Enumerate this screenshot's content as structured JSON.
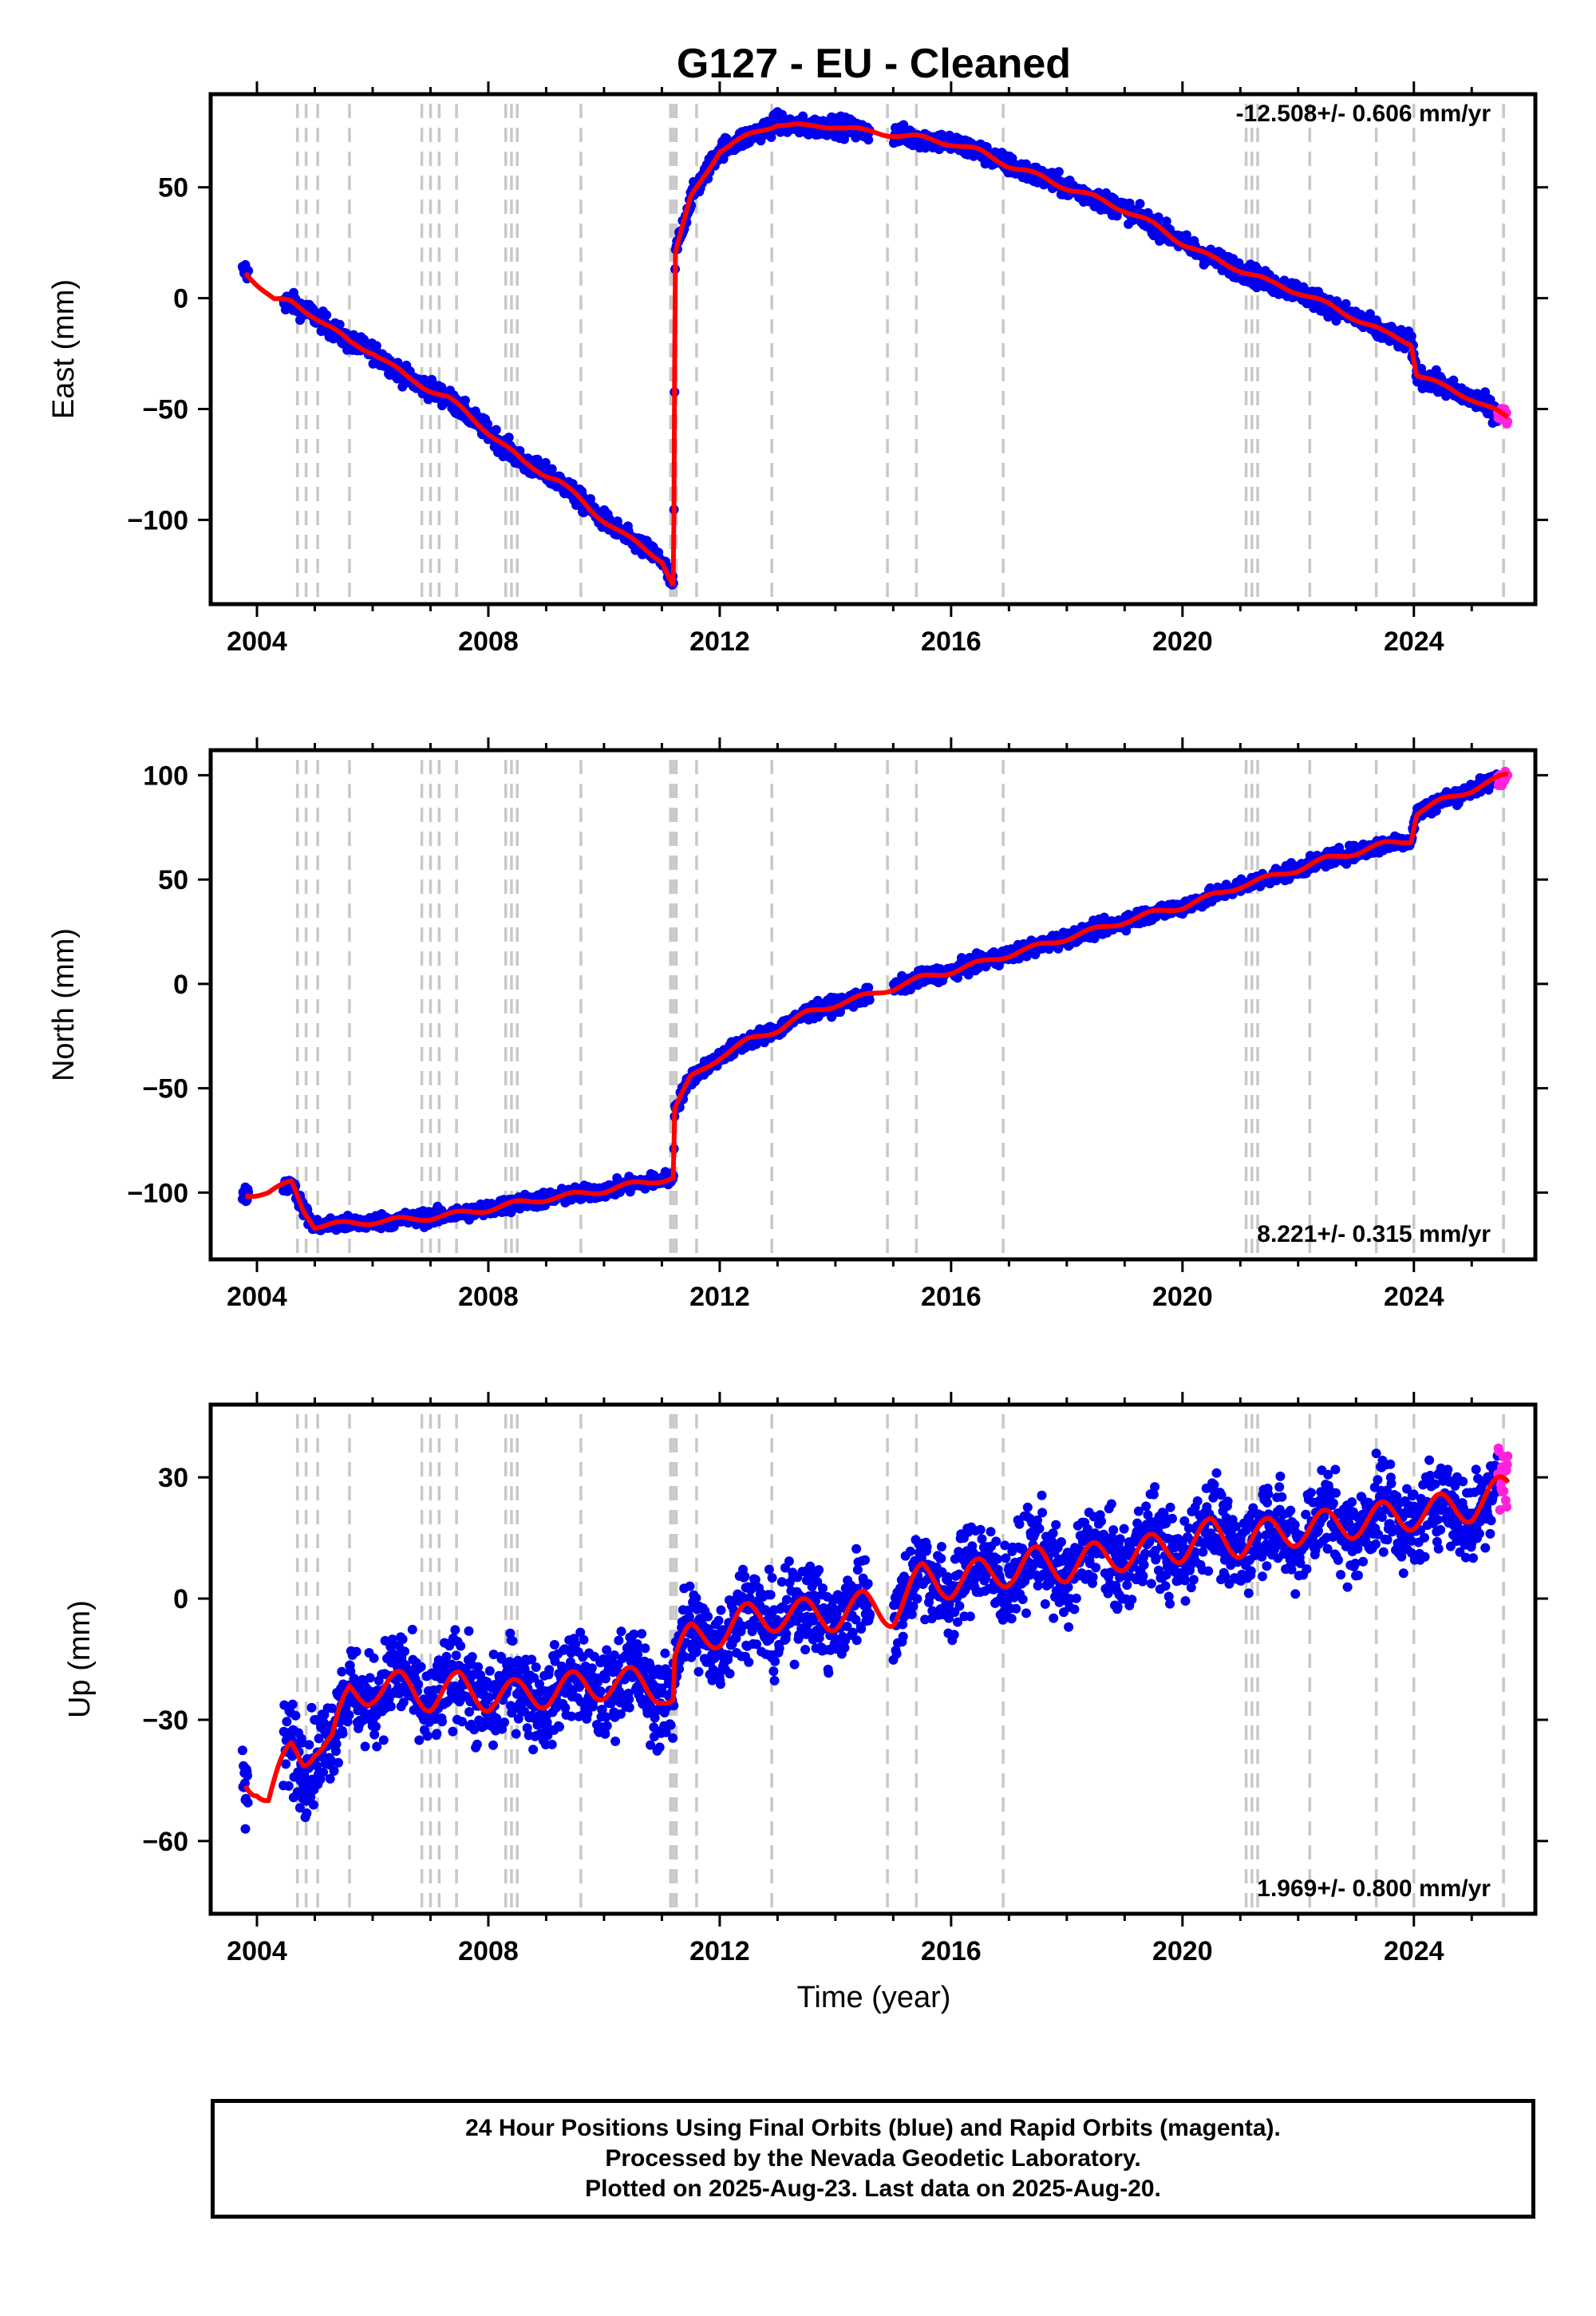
{
  "figure": {
    "title": "G127  - EU - Cleaned",
    "xlabel": "Time (year)",
    "colors": {
      "final": "#0000ee",
      "rapid": "#ff22dd",
      "model": "#ff0000",
      "events": "#c8c8c8"
    },
    "notes": [
      "24 Hour Positions Using Final Orbits (blue) and Rapid Orbits (magenta).",
      "Processed by the Nevada Geodetic Laboratory.",
      "Plotted on 2025-Aug-23. Last data on 2025-Aug-20."
    ]
  },
  "chart_data": [
    {
      "type": "scatter",
      "ylabel": "East (mm)",
      "rate": "-12.508+/- 0.606 mm/yr",
      "xlim": [
        2003.2,
        2026.1
      ],
      "ylim": [
        -138,
        92
      ],
      "xticks": [
        2004,
        2008,
        2012,
        2016,
        2020,
        2024
      ],
      "yticks": [
        -100,
        -50,
        0,
        50
      ],
      "series": [
        {
          "values": [
            [
              2003.8,
              12
            ],
            [
              2004.3,
              -1
            ],
            [
              2004.6,
              -2
            ],
            [
              2005.0,
              -8
            ],
            [
              2005.6,
              -20
            ],
            [
              2006.0,
              -24
            ],
            [
              2006.6,
              -36
            ],
            [
              2007.3,
              -45
            ],
            [
              2007.9,
              -58
            ],
            [
              2008.6,
              -74
            ],
            [
              2009.2,
              -82
            ],
            [
              2009.8,
              -96
            ],
            [
              2010.4,
              -108
            ],
            [
              2011.0,
              -118
            ],
            [
              2011.2,
              -130
            ],
            [
              2011.21,
              -95
            ],
            [
              2011.23,
              20
            ],
            [
              2011.5,
              45
            ],
            [
              2012.0,
              67
            ],
            [
              2012.5,
              73
            ],
            [
              2013.0,
              79
            ],
            [
              2013.5,
              77
            ],
            [
              2014.0,
              78
            ],
            [
              2014.5,
              75
            ],
            [
              2015.0,
              74
            ],
            [
              2015.5,
              72
            ],
            [
              2016.0,
              70
            ],
            [
              2016.5,
              66
            ],
            [
              2017.0,
              60
            ],
            [
              2017.5,
              55
            ],
            [
              2018.0,
              50
            ],
            [
              2018.5,
              45
            ],
            [
              2019.0,
              40
            ],
            [
              2019.5,
              33
            ],
            [
              2020.0,
              25
            ],
            [
              2020.5,
              18
            ],
            [
              2021.0,
              13
            ],
            [
              2021.5,
              7
            ],
            [
              2022.0,
              3
            ],
            [
              2022.5,
              -3
            ],
            [
              2023.0,
              -9
            ],
            [
              2023.5,
              -16
            ],
            [
              2023.95,
              -20
            ],
            [
              2024.05,
              -34
            ],
            [
              2024.5,
              -40
            ],
            [
              2025.0,
              -45
            ],
            [
              2025.6,
              -54
            ]
          ]
        }
      ]
    },
    {
      "type": "scatter",
      "ylabel": "North (mm)",
      "rate": "8.221+/- 0.315 mm/yr",
      "xlim": [
        2003.2,
        2026.1
      ],
      "ylim": [
        -132,
        112
      ],
      "xticks": [
        2004,
        2008,
        2012,
        2016,
        2020,
        2024
      ],
      "yticks": [
        -100,
        -50,
        0,
        50,
        100
      ],
      "series": [
        {
          "values": [
            [
              2003.8,
              -101
            ],
            [
              2004.2,
              -100
            ],
            [
              2004.6,
              -95
            ],
            [
              2004.8,
              -108
            ],
            [
              2005.0,
              -116
            ],
            [
              2005.5,
              -115
            ],
            [
              2006.0,
              -114
            ],
            [
              2006.5,
              -113
            ],
            [
              2007.0,
              -112
            ],
            [
              2007.5,
              -110
            ],
            [
              2008.0,
              -108
            ],
            [
              2008.5,
              -105
            ],
            [
              2009.0,
              -103
            ],
            [
              2009.5,
              -101
            ],
            [
              2010.0,
              -99
            ],
            [
              2010.5,
              -96
            ],
            [
              2011.2,
              -93
            ],
            [
              2011.22,
              -60
            ],
            [
              2011.5,
              -45
            ],
            [
              2012.0,
              -35
            ],
            [
              2012.5,
              -27
            ],
            [
              2013.0,
              -22
            ],
            [
              2013.5,
              -14
            ],
            [
              2014.0,
              -10
            ],
            [
              2014.5,
              -6
            ],
            [
              2015.0,
              -2
            ],
            [
              2015.5,
              3
            ],
            [
              2016.0,
              6
            ],
            [
              2016.5,
              10
            ],
            [
              2017.0,
              14
            ],
            [
              2017.5,
              18
            ],
            [
              2018.0,
              22
            ],
            [
              2018.5,
              26
            ],
            [
              2019.0,
              30
            ],
            [
              2019.5,
              34
            ],
            [
              2020.0,
              37
            ],
            [
              2020.5,
              42
            ],
            [
              2021.0,
              47
            ],
            [
              2021.5,
              51
            ],
            [
              2022.0,
              55
            ],
            [
              2022.5,
              60
            ],
            [
              2023.0,
              63
            ],
            [
              2023.5,
              67
            ],
            [
              2023.95,
              69
            ],
            [
              2024.05,
              82
            ],
            [
              2024.5,
              88
            ],
            [
              2025.0,
              93
            ],
            [
              2025.6,
              100
            ]
          ]
        }
      ]
    },
    {
      "type": "scatter",
      "ylabel": "Up (mm)",
      "rate": "1.969+/- 0.800 mm/yr",
      "xlim": [
        2003.2,
        2026.1
      ],
      "ylim": [
        -78,
        48
      ],
      "xticks": [
        2004,
        2008,
        2012,
        2016,
        2020,
        2024
      ],
      "yticks": [
        -60,
        -30,
        0,
        30
      ],
      "series": [
        {
          "values": [
            [
              2003.8,
              -44
            ],
            [
              2004.0,
              -45
            ],
            [
              2004.2,
              -50
            ],
            [
              2004.4,
              -44
            ],
            [
              2004.6,
              -38
            ],
            [
              2004.8,
              -39
            ],
            [
              2005.0,
              -35
            ],
            [
              2005.3,
              -36
            ],
            [
              2005.6,
              -24
            ],
            [
              2006.0,
              -22
            ],
            [
              2006.5,
              -22
            ],
            [
              2007.0,
              -24
            ],
            [
              2007.5,
              -22
            ],
            [
              2008.0,
              -24
            ],
            [
              2008.5,
              -24
            ],
            [
              2009.0,
              -23
            ],
            [
              2009.5,
              -22
            ],
            [
              2010.0,
              -21
            ],
            [
              2010.5,
              -21
            ],
            [
              2011.0,
              -22
            ],
            [
              2011.2,
              -25
            ],
            [
              2011.22,
              -15
            ],
            [
              2011.5,
              -10
            ],
            [
              2012.0,
              -8
            ],
            [
              2012.5,
              -5
            ],
            [
              2013.0,
              -4
            ],
            [
              2013.5,
              -4
            ],
            [
              2014.0,
              -4
            ],
            [
              2014.5,
              -2
            ],
            [
              2015.0,
              -3
            ],
            [
              2015.5,
              5
            ],
            [
              2016.0,
              4
            ],
            [
              2016.5,
              6
            ],
            [
              2017.0,
              7
            ],
            [
              2017.5,
              9
            ],
            [
              2018.0,
              8
            ],
            [
              2018.5,
              10
            ],
            [
              2019.0,
              11
            ],
            [
              2019.5,
              12
            ],
            [
              2020.0,
              13
            ],
            [
              2020.5,
              16
            ],
            [
              2021.0,
              14
            ],
            [
              2021.5,
              16
            ],
            [
              2022.0,
              17
            ],
            [
              2022.5,
              18
            ],
            [
              2023.0,
              19
            ],
            [
              2023.5,
              20
            ],
            [
              2024.0,
              21
            ],
            [
              2024.5,
              22
            ],
            [
              2025.0,
              23
            ],
            [
              2025.6,
              27
            ]
          ]
        }
      ]
    }
  ],
  "events": [
    2004.7,
    2004.85,
    2005.05,
    2005.6,
    2006.85,
    2007.0,
    2007.15,
    2007.45,
    2008.3,
    2008.4,
    2008.5,
    2009.6,
    2011.15,
    2011.2,
    2011.25,
    2011.6,
    2012.9,
    2014.9,
    2015.4,
    2016.9,
    2021.1,
    2021.2,
    2021.3,
    2022.2,
    2023.35,
    2024.0,
    2025.55
  ]
}
